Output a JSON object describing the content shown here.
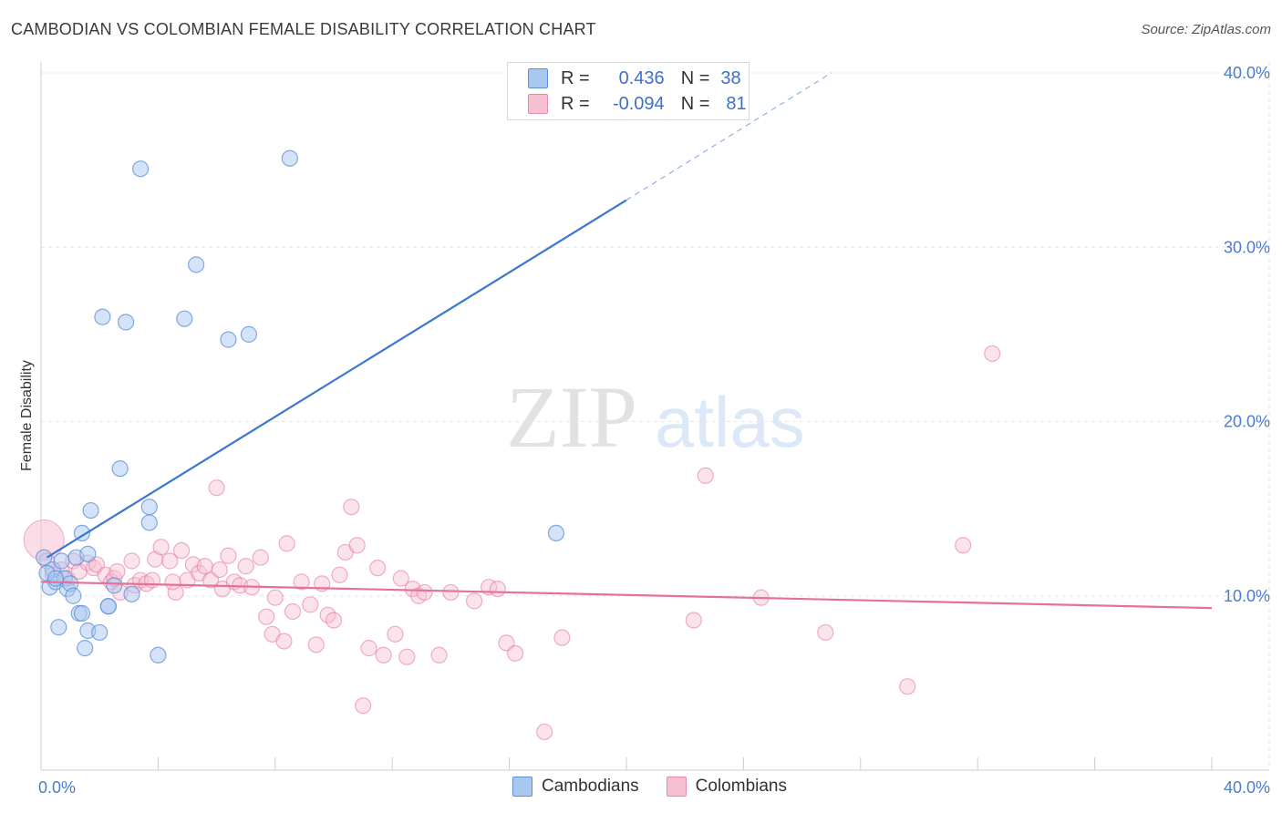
{
  "title": "CAMBODIAN VS COLOMBIAN FEMALE DISABILITY CORRELATION CHART",
  "source": "Source: ZipAtlas.com",
  "watermark": {
    "zip": "ZIP",
    "atlas": "atlas"
  },
  "legend": {
    "rows": [
      {
        "r_label": "R =",
        "r_value": "0.436",
        "n_label": "N =",
        "n_value": "38",
        "color": "#a9c8f0",
        "border": "#5b8fd9"
      },
      {
        "r_label": "R =",
        "r_value": "-0.094",
        "n_label": "N =",
        "n_value": "81",
        "color": "#f7c1d3",
        "border": "#e58aa8"
      }
    ]
  },
  "bottom_legend": [
    "Cambodians",
    "Colombians"
  ],
  "chart_data": {
    "type": "scatter",
    "title": "CAMBODIAN VS COLOMBIAN FEMALE DISABILITY CORRELATION CHART",
    "xlabel": "",
    "ylabel": "Female Disability",
    "xlim": [
      0,
      40
    ],
    "ylim": [
      0,
      40
    ],
    "x_tick_labels": [
      "0.0%",
      "40.0%"
    ],
    "y_ticks": [
      10,
      20,
      30,
      40
    ],
    "y_tick_labels": [
      "10.0%",
      "20.0%",
      "30.0%",
      "40.0%"
    ],
    "grid": true,
    "series": [
      {
        "name": "Cambodians",
        "color": "#5b8fd9",
        "fill": "#a9c8f0",
        "trend": {
          "x0": 0.2,
          "y0": 12.2,
          "x1": 20,
          "y1": 32.7,
          "dash_x1": 27,
          "dash_y1": 40
        },
        "points": [
          [
            0.1,
            12.2
          ],
          [
            0.3,
            10.5
          ],
          [
            0.4,
            11.5
          ],
          [
            0.5,
            10.8
          ],
          [
            0.6,
            8.2
          ],
          [
            0.7,
            12.0
          ],
          [
            0.8,
            11.0
          ],
          [
            0.9,
            10.4
          ],
          [
            1.0,
            10.7
          ],
          [
            1.1,
            10.0
          ],
          [
            1.2,
            12.2
          ],
          [
            1.3,
            9.0
          ],
          [
            1.4,
            9.0
          ],
          [
            1.4,
            13.6
          ],
          [
            1.5,
            7.0
          ],
          [
            1.6,
            12.4
          ],
          [
            1.6,
            8.0
          ],
          [
            1.7,
            14.9
          ],
          [
            2.0,
            7.9
          ],
          [
            2.1,
            26.0
          ],
          [
            2.3,
            9.4
          ],
          [
            2.3,
            9.4
          ],
          [
            2.5,
            10.6
          ],
          [
            2.7,
            17.3
          ],
          [
            2.9,
            25.7
          ],
          [
            3.1,
            10.1
          ],
          [
            3.4,
            34.5
          ],
          [
            3.7,
            14.2
          ],
          [
            3.7,
            15.1
          ],
          [
            4.0,
            6.6
          ],
          [
            4.9,
            25.9
          ],
          [
            5.3,
            29.0
          ],
          [
            6.4,
            24.7
          ],
          [
            7.1,
            25.0
          ],
          [
            8.5,
            35.1
          ],
          [
            17.6,
            13.6
          ],
          [
            0.2,
            11.3
          ],
          [
            0.5,
            11.0
          ]
        ]
      },
      {
        "name": "Colombians",
        "color": "#e5709a",
        "fill": "#f7c1d3",
        "trend": {
          "x0": 0,
          "y0": 10.8,
          "x1": 40,
          "y1": 9.3
        },
        "big_point": [
          0.1,
          13.2
        ],
        "points": [
          [
            0.2,
            12.0
          ],
          [
            0.4,
            11.2
          ],
          [
            0.7,
            11.5
          ],
          [
            0.9,
            11.0
          ],
          [
            1.1,
            12.0
          ],
          [
            1.3,
            11.4
          ],
          [
            1.6,
            11.9
          ],
          [
            1.8,
            11.6
          ],
          [
            1.9,
            11.8
          ],
          [
            2.2,
            11.2
          ],
          [
            2.4,
            10.8
          ],
          [
            2.5,
            11.0
          ],
          [
            2.6,
            11.4
          ],
          [
            2.7,
            10.2
          ],
          [
            3.1,
            12.0
          ],
          [
            3.2,
            10.6
          ],
          [
            3.4,
            10.9
          ],
          [
            3.6,
            10.7
          ],
          [
            3.8,
            10.9
          ],
          [
            3.9,
            12.1
          ],
          [
            4.1,
            12.8
          ],
          [
            4.4,
            12.0
          ],
          [
            4.6,
            10.2
          ],
          [
            4.8,
            12.6
          ],
          [
            5.0,
            10.9
          ],
          [
            5.2,
            11.8
          ],
          [
            5.4,
            11.3
          ],
          [
            5.6,
            11.7
          ],
          [
            5.8,
            10.9
          ],
          [
            6.0,
            16.2
          ],
          [
            6.2,
            10.4
          ],
          [
            6.4,
            12.3
          ],
          [
            6.6,
            10.8
          ],
          [
            6.8,
            10.6
          ],
          [
            7.0,
            11.7
          ],
          [
            7.2,
            10.5
          ],
          [
            7.5,
            12.2
          ],
          [
            7.7,
            8.8
          ],
          [
            7.9,
            7.8
          ],
          [
            8.0,
            9.9
          ],
          [
            8.3,
            7.4
          ],
          [
            8.4,
            13.0
          ],
          [
            8.6,
            9.1
          ],
          [
            8.9,
            10.8
          ],
          [
            9.2,
            9.5
          ],
          [
            9.4,
            7.2
          ],
          [
            9.6,
            10.7
          ],
          [
            9.8,
            8.9
          ],
          [
            10.0,
            8.6
          ],
          [
            10.2,
            11.2
          ],
          [
            10.4,
            12.5
          ],
          [
            10.6,
            15.1
          ],
          [
            10.8,
            12.9
          ],
          [
            11.0,
            3.7
          ],
          [
            11.2,
            7.0
          ],
          [
            11.5,
            11.6
          ],
          [
            11.7,
            6.6
          ],
          [
            12.1,
            7.8
          ],
          [
            12.3,
            11.0
          ],
          [
            12.5,
            6.5
          ],
          [
            12.7,
            10.4
          ],
          [
            12.9,
            10.0
          ],
          [
            13.1,
            10.2
          ],
          [
            13.6,
            6.6
          ],
          [
            14.0,
            10.2
          ],
          [
            14.8,
            9.7
          ],
          [
            15.3,
            10.5
          ],
          [
            15.6,
            10.4
          ],
          [
            15.9,
            7.3
          ],
          [
            16.2,
            6.7
          ],
          [
            17.2,
            2.2
          ],
          [
            17.8,
            7.6
          ],
          [
            22.3,
            8.6
          ],
          [
            22.7,
            16.9
          ],
          [
            24.6,
            9.9
          ],
          [
            26.8,
            7.9
          ],
          [
            29.6,
            4.8
          ],
          [
            31.5,
            12.9
          ],
          [
            32.5,
            23.9
          ],
          [
            4.5,
            10.8
          ],
          [
            6.1,
            11.5
          ]
        ]
      }
    ]
  }
}
